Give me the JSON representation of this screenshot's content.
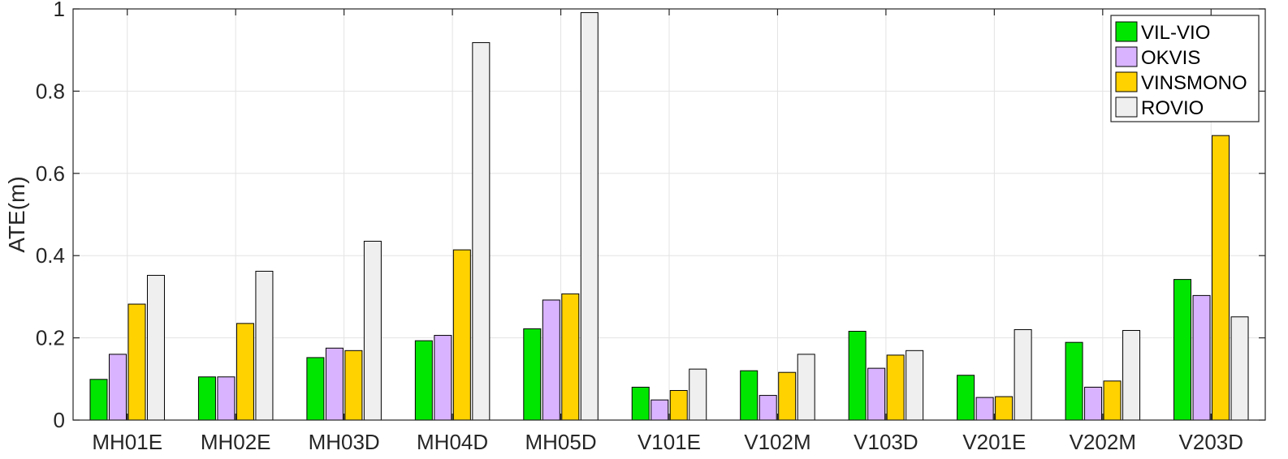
{
  "chart_data": {
    "type": "bar",
    "title": "",
    "xlabel": "",
    "ylabel": "ATE(m)",
    "ylim": [
      0,
      1
    ],
    "yticks": [
      0,
      0.2,
      0.4,
      0.6,
      0.8,
      1
    ],
    "ytick_labels": [
      "0",
      "0.2",
      "0.4",
      "0.6",
      "0.8",
      "1"
    ],
    "grid": true,
    "legend_position": "top-right",
    "categories": [
      "MH01E",
      "MH02E",
      "MH03D",
      "MH04D",
      "MH05D",
      "V101E",
      "V102M",
      "V103D",
      "V201E",
      "V202M",
      "V203D"
    ],
    "series": [
      {
        "name": "VIL-VIO",
        "color": "#00e600",
        "values": [
          0.099,
          0.105,
          0.152,
          0.193,
          0.222,
          0.08,
          0.12,
          0.216,
          0.109,
          0.189,
          0.342
        ]
      },
      {
        "name": "OKVIS",
        "color": "#d9b3ff",
        "values": [
          0.16,
          0.105,
          0.175,
          0.206,
          0.292,
          0.049,
          0.06,
          0.126,
          0.055,
          0.08,
          0.303
        ]
      },
      {
        "name": "VINSMONO",
        "color": "#ffd200",
        "values": [
          0.282,
          0.235,
          0.169,
          0.414,
          0.307,
          0.072,
          0.116,
          0.158,
          0.057,
          0.095,
          0.692
        ]
      },
      {
        "name": "ROVIO",
        "color": "#efefef",
        "values": [
          0.352,
          0.362,
          0.435,
          0.918,
          0.991,
          0.124,
          0.16,
          0.169,
          0.22,
          0.218,
          0.251
        ]
      }
    ]
  }
}
